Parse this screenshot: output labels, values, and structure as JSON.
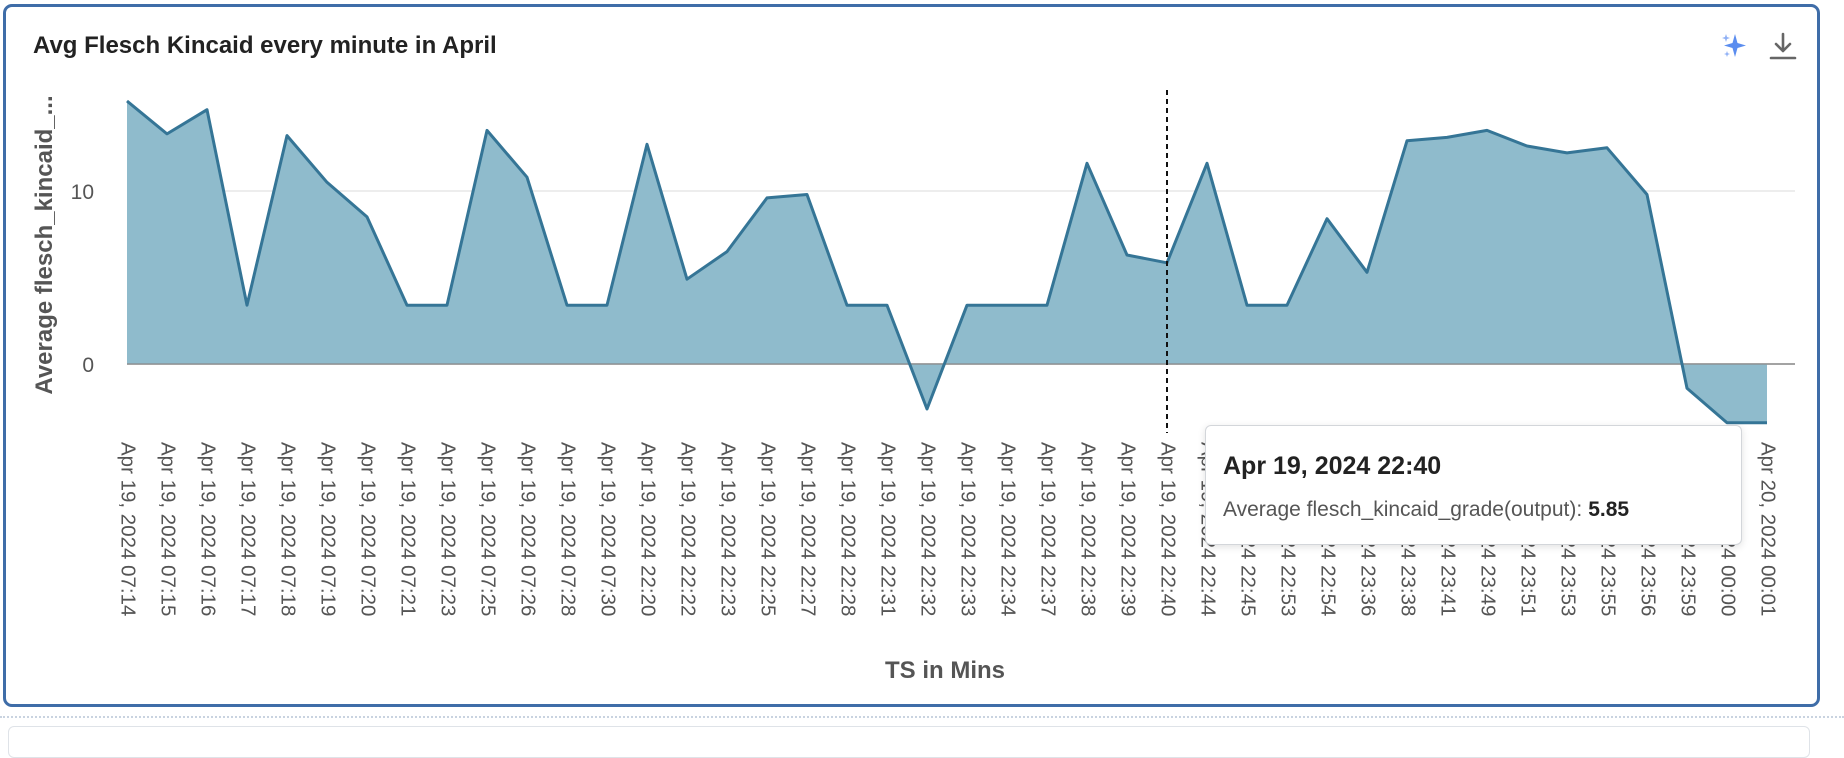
{
  "panel": {
    "title": "Avg Flesch Kincaid every minute in April",
    "actions": [
      {
        "name": "ai-sparkle",
        "icon": "sparkle-icon",
        "color": "#5b8def"
      },
      {
        "name": "download",
        "icon": "download-icon",
        "color": "#666666"
      }
    ]
  },
  "tooltip": {
    "title": "Apr 19, 2024 22:40",
    "series_label": "Average flesch_kincaid_grade(output):",
    "value": "5.85"
  },
  "chart_data": {
    "type": "area",
    "title": "Avg Flesch Kincaid every minute in April",
    "xlabel": "TS in Mins",
    "ylabel": "Average flesch_kincaid_...",
    "yticks": [
      0,
      10
    ],
    "ylim": [
      -3.5,
      15.5
    ],
    "grid": true,
    "legend": "none",
    "hover_index": 26,
    "series": [
      {
        "name": "Average flesch_kincaid_grade(output)",
        "color": "#357596",
        "fill": "#8fbbcc",
        "values": [
          15.2,
          13.3,
          14.7,
          3.4,
          13.2,
          10.5,
          8.5,
          3.4,
          3.4,
          13.5,
          10.8,
          3.4,
          3.4,
          12.7,
          4.9,
          6.5,
          9.6,
          9.8,
          3.4,
          3.4,
          -2.6,
          3.4,
          3.4,
          3.4,
          11.6,
          6.3,
          5.85,
          11.6,
          3.4,
          3.4,
          8.4,
          5.3,
          12.9,
          13.1,
          13.5,
          12.6,
          12.2,
          12.5,
          9.8,
          -1.4,
          -3.4,
          -3.4
        ]
      }
    ],
    "x": [
      "Apr 19, 2024 07:14",
      "Apr 19, 2024 07:15",
      "Apr 19, 2024 07:16",
      "Apr 19, 2024 07:17",
      "Apr 19, 2024 07:18",
      "Apr 19, 2024 07:19",
      "Apr 19, 2024 07:20",
      "Apr 19, 2024 07:21",
      "Apr 19, 2024 07:23",
      "Apr 19, 2024 07:25",
      "Apr 19, 2024 07:26",
      "Apr 19, 2024 07:28",
      "Apr 19, 2024 07:30",
      "Apr 19, 2024 22:20",
      "Apr 19, 2024 22:22",
      "Apr 19, 2024 22:23",
      "Apr 19, 2024 22:25",
      "Apr 19, 2024 22:27",
      "Apr 19, 2024 22:28",
      "Apr 19, 2024 22:31",
      "Apr 19, 2024 22:32",
      "Apr 19, 2024 22:33",
      "Apr 19, 2024 22:34",
      "Apr 19, 2024 22:37",
      "Apr 19, 2024 22:38",
      "Apr 19, 2024 22:39",
      "Apr 19, 2024 22:40",
      "Apr 19, 2024 22:44",
      "Apr 19, 2024 22:45",
      "Apr 19, 2024 22:53",
      "Apr 19, 2024 22:54",
      "Apr 19, 2024 23:36",
      "Apr 19, 2024 23:38",
      "Apr 19, 2024 23:41",
      "Apr 19, 2024 23:49",
      "Apr 19, 2024 23:51",
      "Apr 19, 2024 23:53",
      "Apr 19, 2024 23:55",
      "Apr 19, 2024 23:56",
      "Apr 19, 2024 23:59",
      "Apr 20, 2024 00:00",
      "Apr 20, 2024 00:01"
    ]
  }
}
